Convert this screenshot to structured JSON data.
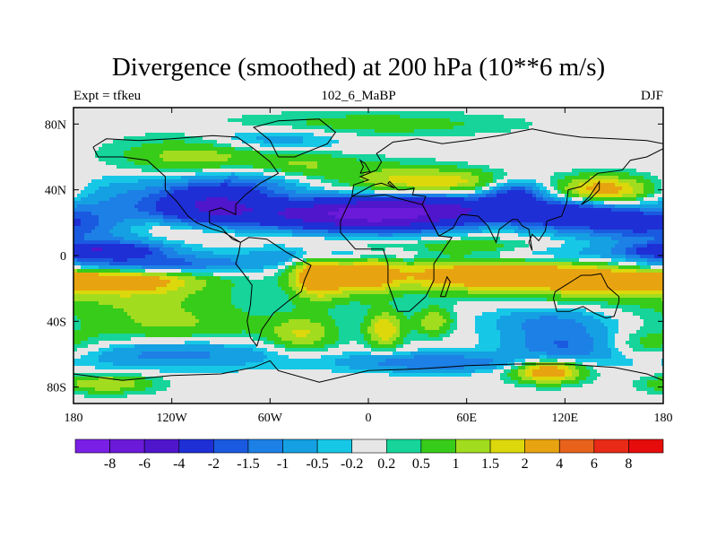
{
  "header": {
    "title": "Divergence (smoothed) at 200 hPa (10**6 m/s)",
    "left": "Expt = tfkeu",
    "center": "102_6_MaBP",
    "right": "DJF"
  },
  "chart_data": {
    "type": "heatmap",
    "title": "Divergence (smoothed) at 200 hPa (10**6 m/s)",
    "subtitle_left": "Expt = tfkeu",
    "subtitle_center": "102_6_MaBP",
    "subtitle_right": "DJF",
    "xlim": [
      -180,
      180
    ],
    "ylim": [
      -90,
      90
    ],
    "x_ticks": [
      {
        "value": -180,
        "label": "180"
      },
      {
        "value": -120,
        "label": "120W"
      },
      {
        "value": -60,
        "label": "60W"
      },
      {
        "value": 0,
        "label": "0"
      },
      {
        "value": 60,
        "label": "60E"
      },
      {
        "value": 120,
        "label": "120E"
      },
      {
        "value": 180,
        "label": "180"
      }
    ],
    "y_ticks": [
      {
        "value": 80,
        "label": "80N"
      },
      {
        "value": 40,
        "label": "40N"
      },
      {
        "value": 0,
        "label": "0"
      },
      {
        "value": -40,
        "label": "40S"
      },
      {
        "value": -80,
        "label": "80S"
      }
    ],
    "levels": [
      "-8",
      "-6",
      "-4",
      "-2",
      "-1.5",
      "-1",
      "-0.5",
      "-0.2",
      "0.2",
      "0.5",
      "1",
      "1.5",
      "2",
      "4",
      "6",
      "8"
    ],
    "colors": [
      "#7a1fe6",
      "#6a1ad8",
      "#4f16cc",
      "#1f2fd6",
      "#1a5ae0",
      "#1d80e6",
      "#14a0e2",
      "#17c8e6",
      "#e6e6e6",
      "#16d49a",
      "#38cc1a",
      "#a2dc1e",
      "#dcd80c",
      "#e8a410",
      "#e8621c",
      "#e82a16",
      "#e60c0c"
    ],
    "fields": [
      {
        "lon": -160,
        "lat": 10,
        "value": -1.0,
        "sx": 40,
        "sy": 5
      },
      {
        "lon": -165,
        "lat": 3,
        "value": -3.5,
        "sx": 25,
        "sy": 3
      },
      {
        "lon": -140,
        "lat": -5,
        "value": -2.0,
        "sx": 50,
        "sy": 4
      },
      {
        "lon": -120,
        "lat": 15,
        "value": 1.2,
        "sx": 30,
        "sy": 6
      },
      {
        "lon": -155,
        "lat": -15,
        "value": 2.5,
        "sx": 35,
        "sy": 5
      },
      {
        "lon": -140,
        "lat": -25,
        "value": 1.0,
        "sx": 40,
        "sy": 8
      },
      {
        "lon": -135,
        "lat": 30,
        "value": -1.3,
        "sx": 35,
        "sy": 12
      },
      {
        "lon": -95,
        "lat": 30,
        "value": -3.0,
        "sx": 20,
        "sy": 8
      },
      {
        "lon": -75,
        "lat": 43,
        "value": -1.3,
        "sx": 25,
        "sy": 10
      },
      {
        "lon": -100,
        "lat": 60,
        "value": 1.5,
        "sx": 35,
        "sy": 8
      },
      {
        "lon": -40,
        "lat": 55,
        "value": 1.0,
        "sx": 25,
        "sy": 6
      },
      {
        "lon": -35,
        "lat": 25,
        "value": -3.5,
        "sx": 35,
        "sy": 6
      },
      {
        "lon": 10,
        "lat": 25,
        "value": -4.5,
        "sx": 30,
        "sy": 7
      },
      {
        "lon": 50,
        "lat": 28,
        "value": -3.0,
        "sx": 35,
        "sy": 6
      },
      {
        "lon": 60,
        "lat": 5,
        "value": 1.0,
        "sx": 30,
        "sy": 4
      },
      {
        "lon": 20,
        "lat": 45,
        "value": 1.5,
        "sx": 25,
        "sy": 7
      },
      {
        "lon": 55,
        "lat": 45,
        "value": 1.2,
        "sx": 20,
        "sy": 5
      },
      {
        "lon": 90,
        "lat": 38,
        "value": -2.0,
        "sx": 12,
        "sy": 5
      },
      {
        "lon": 120,
        "lat": 25,
        "value": -3.0,
        "sx": 25,
        "sy": 6
      },
      {
        "lon": 145,
        "lat": 40,
        "value": 2.5,
        "sx": 20,
        "sy": 6
      },
      {
        "lon": 165,
        "lat": 20,
        "value": -2.0,
        "sx": 25,
        "sy": 6
      },
      {
        "lon": -30,
        "lat": -12,
        "value": 3.0,
        "sx": 12,
        "sy": 10
      },
      {
        "lon": 0,
        "lat": -10,
        "value": 2.0,
        "sx": 12,
        "sy": 10
      },
      {
        "lon": 75,
        "lat": -12,
        "value": 3.0,
        "sx": 50,
        "sy": 7
      },
      {
        "lon": 140,
        "lat": -15,
        "value": 1.5,
        "sx": 30,
        "sy": 8
      },
      {
        "lon": 10,
        "lat": -45,
        "value": 2.0,
        "sx": 8,
        "sy": 8
      },
      {
        "lon": 40,
        "lat": -40,
        "value": 1.5,
        "sx": 8,
        "sy": 6
      },
      {
        "lon": -40,
        "lat": -48,
        "value": 1.5,
        "sx": 15,
        "sy": 8
      },
      {
        "lon": -120,
        "lat": -60,
        "value": -1.2,
        "sx": 50,
        "sy": 6
      },
      {
        "lon": 40,
        "lat": -65,
        "value": -1.5,
        "sx": 40,
        "sy": 4
      },
      {
        "lon": 120,
        "lat": -55,
        "value": -1.5,
        "sx": 25,
        "sy": 8
      },
      {
        "lon": 110,
        "lat": -70,
        "value": 3.0,
        "sx": 15,
        "sy": 5
      },
      {
        "lon": -120,
        "lat": -42,
        "value": 1.0,
        "sx": 40,
        "sy": 8
      },
      {
        "lon": 110,
        "lat": -40,
        "value": -1.0,
        "sx": 25,
        "sy": 6
      },
      {
        "lon": -60,
        "lat": 70,
        "value": -1.0,
        "sx": 30,
        "sy": 6
      },
      {
        "lon": 0,
        "lat": 80,
        "value": 0.8,
        "sx": 60,
        "sy": 5
      },
      {
        "lon": -20,
        "lat": 0,
        "value": -1.5,
        "sx": 30,
        "sy": 4
      },
      {
        "lon": 100,
        "lat": 0,
        "value": -1.0,
        "sx": 40,
        "sy": 4
      },
      {
        "lon": -160,
        "lat": -78,
        "value": 1.5,
        "sx": 20,
        "sy": 4
      },
      {
        "lon": 170,
        "lat": -55,
        "value": 1.0,
        "sx": 20,
        "sy": 6
      }
    ]
  }
}
